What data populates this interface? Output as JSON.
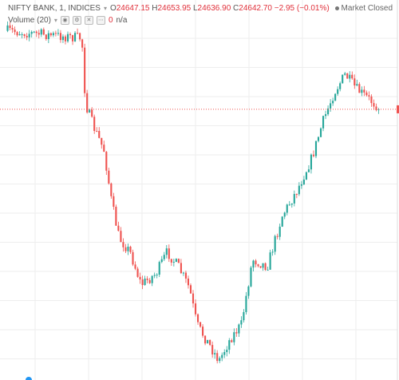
{
  "legend": {
    "symbol": "NIFTY BANK, 1, INDICES",
    "open_key": "O",
    "open": "24647.15",
    "high_key": "H",
    "high": "24653.95",
    "low_key": "L",
    "low": "24636.90",
    "close_key": "C",
    "close": "24642.70",
    "change": "−2.95 (−0.01%)",
    "volume_label": "Volume (20)",
    "volume_value": "0",
    "volume_extra": "n/a"
  },
  "status": {
    "market": "Market Closed"
  },
  "colors": {
    "up": "#26a69a",
    "down": "#ef5350",
    "last_price": "#ef5350",
    "grid": "#eeeeee"
  },
  "chart_data": {
    "type": "candlestick",
    "title": "NIFTY BANK, 1, INDICES",
    "interval": "1",
    "last": {
      "open": 24647.15,
      "high": 24653.95,
      "low": 24636.9,
      "close": 24642.7
    },
    "shape": [
      {
        "t": 0,
        "p": 0.05
      },
      {
        "t": 0.2,
        "p": 0.07
      },
      {
        "t": 0.21,
        "p": 0.25
      },
      {
        "t": 0.23,
        "p": 0.31
      },
      {
        "t": 0.26,
        "p": 0.38
      },
      {
        "t": 0.28,
        "p": 0.52
      },
      {
        "t": 0.3,
        "p": 0.62
      },
      {
        "t": 0.33,
        "p": 0.66
      },
      {
        "t": 0.36,
        "p": 0.75
      },
      {
        "t": 0.4,
        "p": 0.72
      },
      {
        "t": 0.43,
        "p": 0.66
      },
      {
        "t": 0.46,
        "p": 0.7
      },
      {
        "t": 0.49,
        "p": 0.76
      },
      {
        "t": 0.51,
        "p": 0.86
      },
      {
        "t": 0.54,
        "p": 0.91
      },
      {
        "t": 0.57,
        "p": 0.96
      },
      {
        "t": 0.6,
        "p": 0.9
      },
      {
        "t": 0.63,
        "p": 0.86
      },
      {
        "t": 0.66,
        "p": 0.68
      },
      {
        "t": 0.7,
        "p": 0.7
      },
      {
        "t": 0.74,
        "p": 0.56
      },
      {
        "t": 0.78,
        "p": 0.49
      },
      {
        "t": 0.82,
        "p": 0.4
      },
      {
        "t": 0.85,
        "p": 0.3
      },
      {
        "t": 0.88,
        "p": 0.22
      },
      {
        "t": 0.91,
        "p": 0.17
      },
      {
        "t": 0.94,
        "p": 0.21
      },
      {
        "t": 1,
        "p": 0.26
      }
    ]
  }
}
